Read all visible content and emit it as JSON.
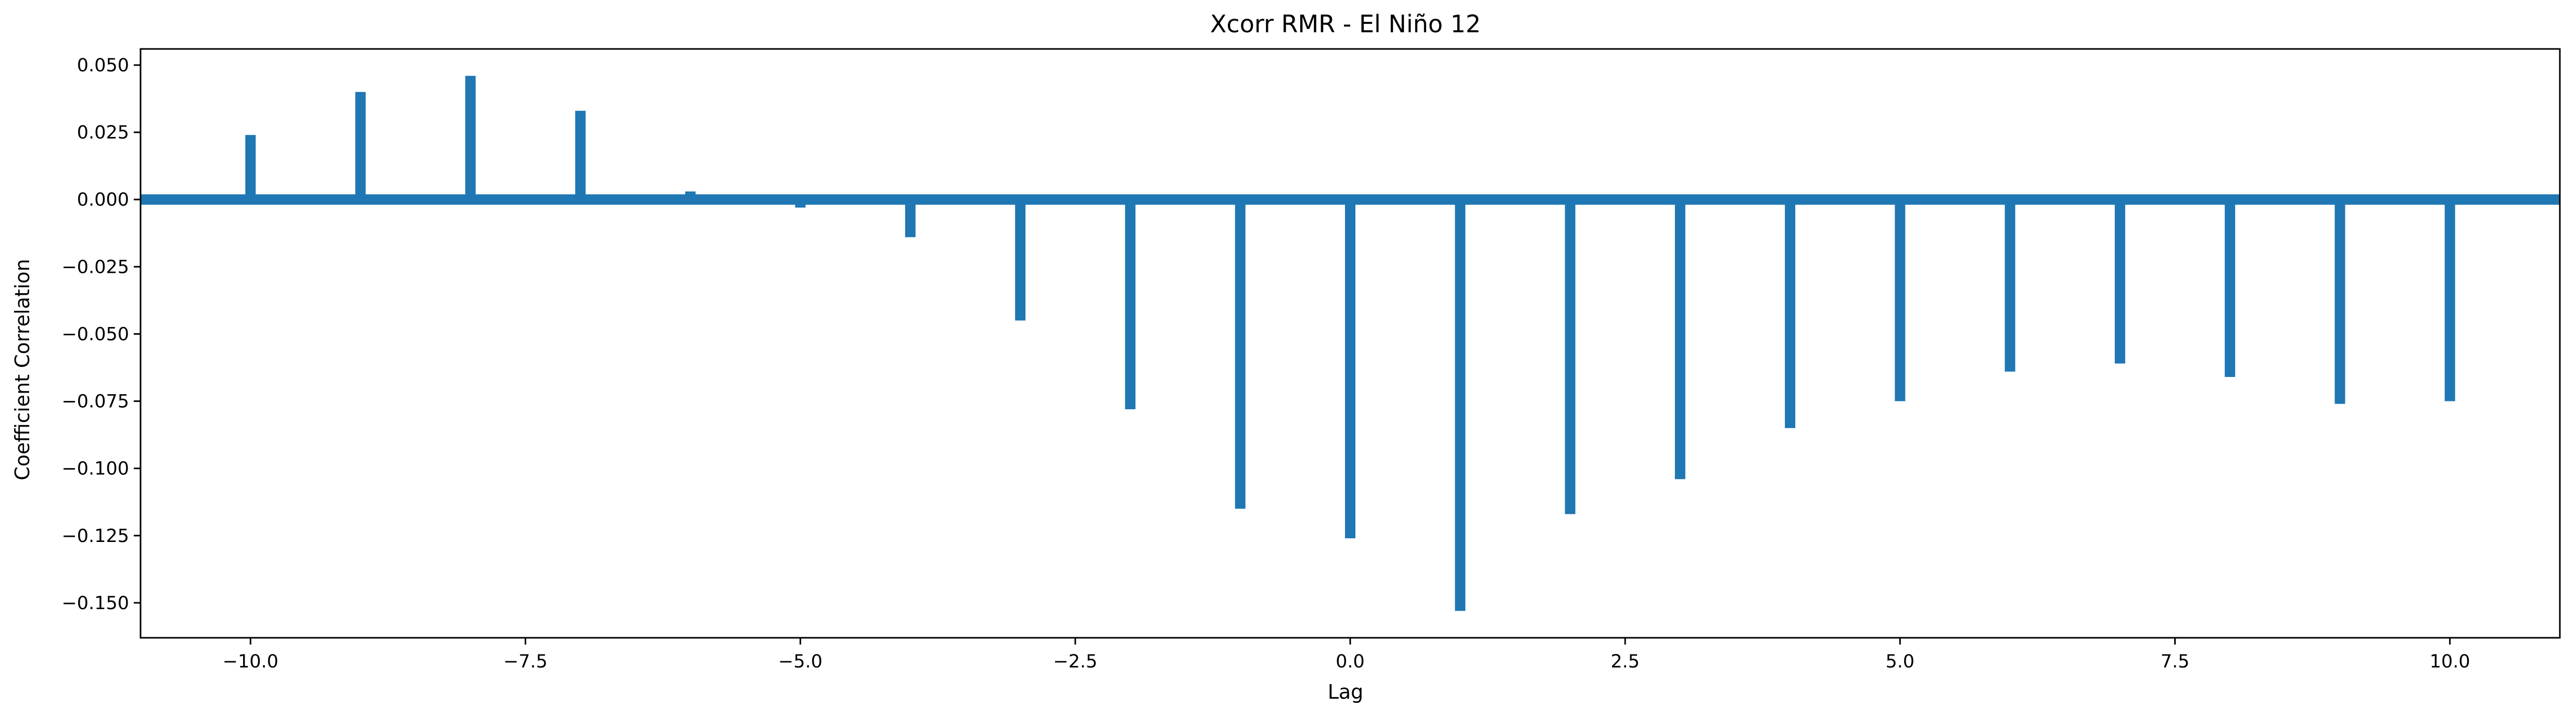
{
  "chart_data": {
    "type": "bar",
    "title": "Xcorr RMR - El Niño 12",
    "xlabel": "Lag",
    "ylabel": "Coefficient Correlation",
    "xlim": [
      -11,
      11
    ],
    "ylim": [
      -0.163,
      0.056
    ],
    "xticks": [
      "−10.0",
      "−7.5",
      "−5.0",
      "−2.5",
      "0.0",
      "2.5",
      "5.0",
      "7.5",
      "10.0"
    ],
    "yticks": [
      "0.050",
      "0.025",
      "0.000",
      "−0.025",
      "−0.050",
      "−0.075",
      "−0.100",
      "−0.125",
      "−0.150"
    ],
    "grid": false,
    "color": "#1f77b4",
    "baseline": 0,
    "x": [
      -10,
      -9,
      -8,
      -7,
      -6,
      -5,
      -4,
      -3,
      -2,
      -1,
      0,
      1,
      2,
      3,
      4,
      5,
      6,
      7,
      8,
      9,
      10
    ],
    "values": [
      0.024,
      0.04,
      0.046,
      0.033,
      0.003,
      -0.003,
      -0.014,
      -0.045,
      -0.078,
      -0.115,
      -0.126,
      -0.153,
      -0.117,
      -0.104,
      -0.085,
      -0.075,
      -0.064,
      -0.061,
      -0.066,
      -0.076,
      -0.075
    ]
  }
}
